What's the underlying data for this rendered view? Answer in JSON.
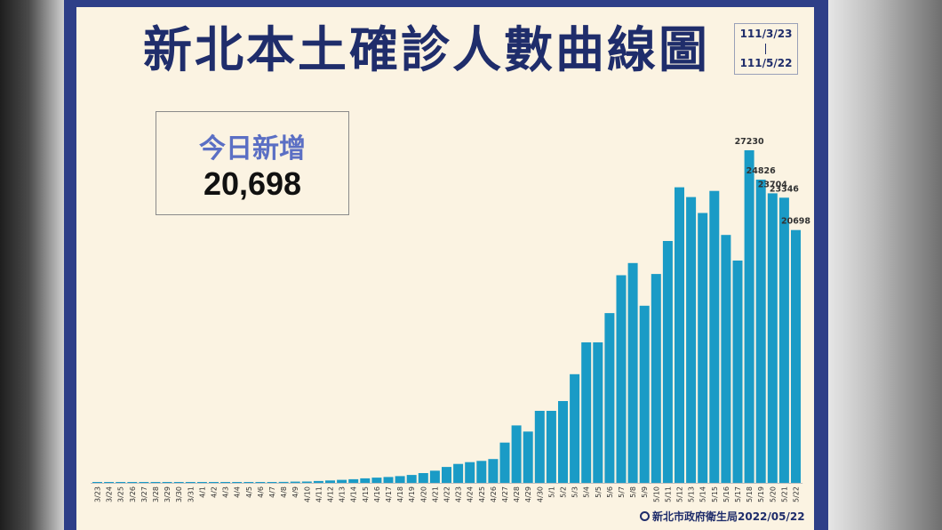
{
  "title": "新北本土確診人數曲線圖",
  "date_range": {
    "start": "111/3/23",
    "end": "111/5/22"
  },
  "today": {
    "label": "今日新增",
    "value": "20,698"
  },
  "source": "新北市政府衛生局2022/05/22",
  "colors": {
    "bar": "#1a9bc6",
    "title": "#1f2d6b",
    "frame": "#2e3f88",
    "panel": "#fbf3e2"
  },
  "chart_data": {
    "type": "bar",
    "title": "新北本土確診人數曲線圖",
    "xlabel": "",
    "ylabel": "",
    "grid": false,
    "categories": [
      "3/23",
      "3/24",
      "3/25",
      "3/26",
      "3/27",
      "3/28",
      "3/29",
      "3/30",
      "3/31",
      "4/1",
      "4/2",
      "4/3",
      "4/4",
      "4/5",
      "4/6",
      "4/7",
      "4/8",
      "4/9",
      "4/10",
      "4/11",
      "4/12",
      "4/13",
      "4/14",
      "4/15",
      "4/16",
      "4/17",
      "4/18",
      "4/19",
      "4/20",
      "4/21",
      "4/22",
      "4/23",
      "4/24",
      "4/25",
      "4/26",
      "4/27",
      "4/28",
      "4/29",
      "4/30",
      "5/1",
      "5/2",
      "5/3",
      "5/4",
      "5/5",
      "5/6",
      "5/7",
      "5/8",
      "5/9",
      "5/10",
      "5/11",
      "5/12",
      "5/13",
      "5/14",
      "5/15",
      "5/16",
      "5/17",
      "5/18",
      "5/19",
      "5/20",
      "5/21",
      "5/22"
    ],
    "values": [
      4,
      2,
      3,
      2,
      3,
      2,
      3,
      4,
      6,
      8,
      15,
      22,
      30,
      40,
      50,
      60,
      80,
      100,
      110,
      150,
      200,
      250,
      300,
      370,
      430,
      480,
      550,
      650,
      800,
      1000,
      1300,
      1550,
      1700,
      1800,
      1950,
      3300,
      4700,
      4200,
      5900,
      5900,
      6700,
      8900,
      11500,
      11500,
      13900,
      17000,
      18000,
      14500,
      17100,
      19800,
      24200,
      23400,
      22100,
      23900,
      20300,
      18200,
      27230,
      24826,
      23704,
      23346,
      20698
    ],
    "data_labels": [
      {
        "category": "5/18",
        "text": "27230"
      },
      {
        "category": "5/19",
        "text": "24826"
      },
      {
        "category": "5/20",
        "text": "23704"
      },
      {
        "category": "5/21",
        "text": "23346"
      },
      {
        "category": "5/22",
        "text": "20698"
      }
    ],
    "ylim": [
      0,
      28000
    ]
  }
}
